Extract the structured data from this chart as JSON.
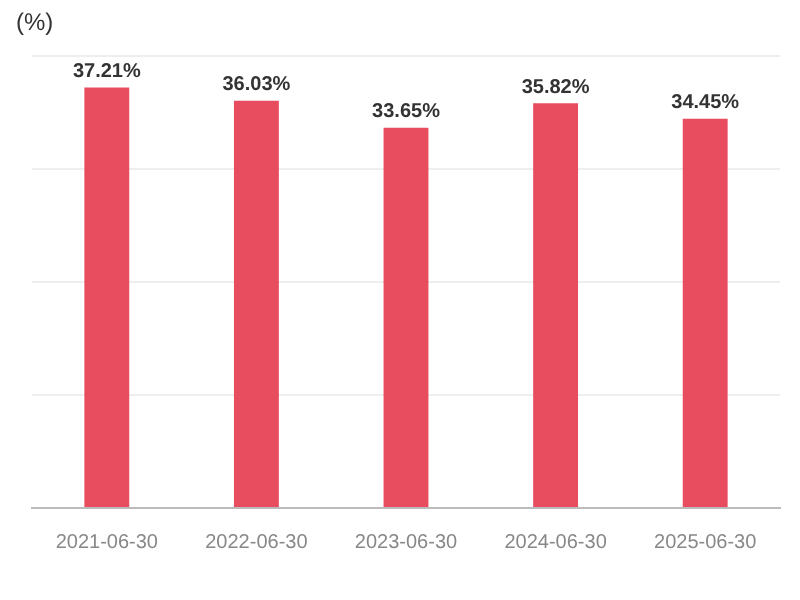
{
  "chart_data": {
    "type": "bar",
    "ylabel": "(%)",
    "categories": [
      "2021-06-30",
      "2022-06-30",
      "2023-06-30",
      "2024-06-30",
      "2025-06-30"
    ],
    "values": [
      37.21,
      36.03,
      33.65,
      35.82,
      34.45
    ],
    "value_labels": [
      "37.21%",
      "36.03%",
      "33.65%",
      "35.82%",
      "34.45%"
    ],
    "color": "#e84c5f",
    "ylim": [
      0,
      40
    ],
    "yticks": [
      {
        "value": 0,
        "label": null
      },
      {
        "value": 10,
        "label": null
      },
      {
        "value": 20,
        "label": null
      },
      {
        "value": 30,
        "label": null
      },
      {
        "value": 40,
        "label": null
      }
    ],
    "grid": "y",
    "legend": false
  }
}
